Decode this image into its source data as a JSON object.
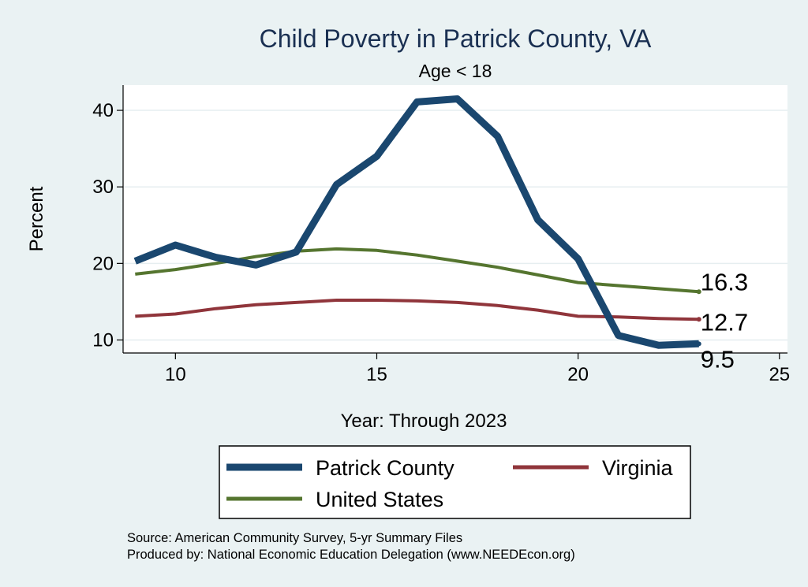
{
  "chart_data": {
    "type": "line",
    "title": "Child Poverty in Patrick County, VA",
    "subtitle": "Age < 18",
    "xlabel": "Year: Through 2023",
    "ylabel": "Percent",
    "xlim": [
      8.7,
      25.2
    ],
    "ylim": [
      8.3,
      43.3
    ],
    "x_ticks": [
      10,
      15,
      20,
      25
    ],
    "y_ticks": [
      10,
      20,
      30,
      40
    ],
    "grid": true,
    "legend_position": "bottom",
    "x": [
      9,
      10,
      11,
      12,
      13,
      14,
      15,
      16,
      17,
      18,
      19,
      20,
      21,
      22,
      23
    ],
    "series": [
      {
        "name": "Patrick County",
        "color": "#1a476f",
        "values": [
          20.3,
          22.4,
          20.8,
          19.8,
          21.5,
          30.3,
          34.0,
          41.1,
          41.5,
          36.6,
          25.7,
          20.6,
          10.6,
          9.3,
          9.5
        ],
        "end_label": "9.5"
      },
      {
        "name": "Virginia",
        "color": "#90353b",
        "values": [
          13.1,
          13.4,
          14.1,
          14.6,
          14.9,
          15.2,
          15.2,
          15.1,
          14.9,
          14.5,
          13.9,
          13.1,
          13.0,
          12.8,
          12.7
        ],
        "end_label": "12.7"
      },
      {
        "name": "United States",
        "color": "#55752f",
        "values": [
          18.6,
          19.2,
          20.0,
          20.9,
          21.6,
          21.9,
          21.7,
          21.1,
          20.3,
          19.5,
          18.5,
          17.5,
          17.1,
          16.7,
          16.3
        ],
        "end_label": "16.3"
      }
    ]
  },
  "notes": {
    "source": "Source: American Community Survey, 5-yr Summary Files",
    "produced": "Produced by: National Economic Education Delegation (www.NEEDEcon.org)"
  }
}
